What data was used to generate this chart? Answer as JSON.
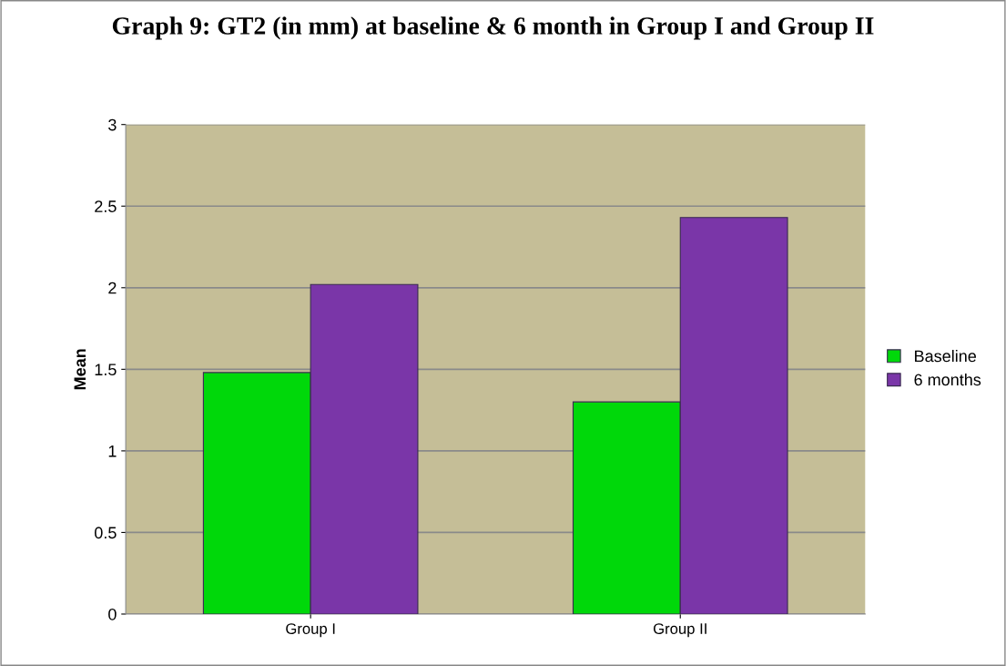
{
  "chart_data": {
    "type": "bar",
    "title": "Graph 9: GT2 (in mm) at baseline & 6 month in Group I and Group II",
    "ylabel": "Mean",
    "categories": [
      "Group I",
      "Group II"
    ],
    "series": [
      {
        "name": "Baseline",
        "color": "#00d80a",
        "values": [
          1.48,
          1.3
        ]
      },
      {
        "name": "6 months",
        "color": "#7a36a8",
        "values": [
          2.02,
          2.43
        ]
      }
    ],
    "ylim": [
      0,
      3
    ],
    "yticks": [
      0,
      0.5,
      1,
      1.5,
      2,
      2.5,
      3
    ],
    "grid": "y",
    "legend": "right"
  }
}
